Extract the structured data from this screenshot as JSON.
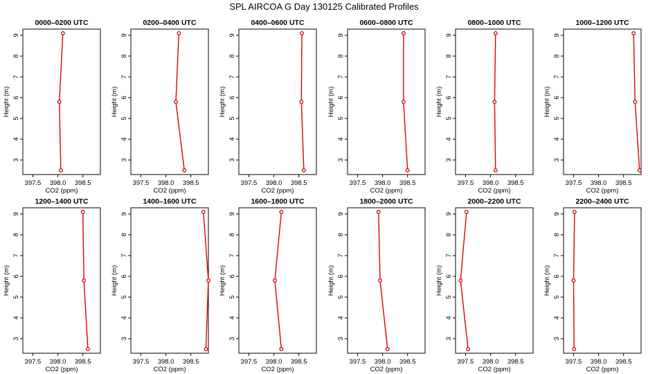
{
  "figure": {
    "title": "SPL AIRCOA G  Day 130125  Calibrated Profiles"
  },
  "colors": {
    "series": "#dd0000",
    "axes": "#000000"
  },
  "chart_data": [
    {
      "type": "line",
      "title": "0000–0200 UTC",
      "xlabel": "CO2 (ppm)",
      "ylabel": "Height (m)",
      "xlim": [
        397.3,
        398.85
      ],
      "ylim": [
        2.3,
        9.3
      ],
      "xticks": [
        "397.5",
        "398.0",
        "398.5"
      ],
      "yticks": [
        "3",
        "4",
        "5",
        "6",
        "7",
        "8",
        "9"
      ],
      "x": [
        398.06,
        398.03,
        398.1
      ],
      "y": [
        2.5,
        5.8,
        9.1
      ]
    },
    {
      "type": "line",
      "title": "0200–0400 UTC",
      "xlabel": "CO2 (ppm)",
      "ylabel": "Height (m)",
      "xlim": [
        397.3,
        398.85
      ],
      "ylim": [
        2.3,
        9.3
      ],
      "xticks": [
        "397.5",
        "398.0",
        "398.5"
      ],
      "yticks": [
        "3",
        "4",
        "5",
        "6",
        "7",
        "8",
        "9"
      ],
      "x": [
        398.37,
        398.2,
        398.26
      ],
      "y": [
        2.5,
        5.8,
        9.1
      ]
    },
    {
      "type": "line",
      "title": "0400–0600 UTC",
      "xlabel": "CO2 (ppm)",
      "ylabel": "Height (m)",
      "xlim": [
        397.3,
        398.85
      ],
      "ylim": [
        2.3,
        9.3
      ],
      "xticks": [
        "397.5",
        "398.0",
        "398.5"
      ],
      "yticks": [
        "3",
        "4",
        "5",
        "6",
        "7",
        "8",
        "9"
      ],
      "x": [
        398.6,
        398.55,
        398.56
      ],
      "y": [
        2.5,
        5.8,
        9.1
      ]
    },
    {
      "type": "line",
      "title": "0600–0800 UTC",
      "xlabel": "CO2 (ppm)",
      "ylabel": "Height (m)",
      "xlim": [
        397.3,
        398.85
      ],
      "ylim": [
        2.3,
        9.3
      ],
      "xticks": [
        "397.5",
        "398.0",
        "398.5"
      ],
      "yticks": [
        "3",
        "4",
        "5",
        "6",
        "7",
        "8",
        "9"
      ],
      "x": [
        398.5,
        398.42,
        398.42
      ],
      "y": [
        2.5,
        5.8,
        9.1
      ]
    },
    {
      "type": "line",
      "title": "0800–1000 UTC",
      "xlabel": "CO2 (ppm)",
      "ylabel": "Height (m)",
      "xlim": [
        397.3,
        398.85
      ],
      "ylim": [
        2.3,
        9.3
      ],
      "xticks": [
        "397.5",
        "398.0",
        "398.5"
      ],
      "yticks": [
        "3",
        "4",
        "5",
        "6",
        "7",
        "8",
        "9"
      ],
      "x": [
        398.1,
        398.08,
        398.1
      ],
      "y": [
        2.5,
        5.8,
        9.1
      ]
    },
    {
      "type": "line",
      "title": "1000–1200 UTC",
      "xlabel": "CO2 (ppm)",
      "ylabel": "Height (m)",
      "xlim": [
        397.3,
        398.85
      ],
      "ylim": [
        2.3,
        9.3
      ],
      "xticks": [
        "397.5",
        "398.0",
        "398.5"
      ],
      "yticks": [
        "3",
        "4",
        "5",
        "6",
        "7",
        "8",
        "9"
      ],
      "x": [
        398.82,
        398.73,
        398.7
      ],
      "y": [
        2.5,
        5.8,
        9.1
      ]
    },
    {
      "type": "line",
      "title": "1200–1400 UTC",
      "xlabel": "CO2 (ppm)",
      "ylabel": "Height (m)",
      "xlim": [
        397.3,
        398.85
      ],
      "ylim": [
        2.3,
        9.3
      ],
      "xticks": [
        "397.5",
        "398.0",
        "398.5"
      ],
      "yticks": [
        "3",
        "4",
        "5",
        "6",
        "7",
        "8",
        "9"
      ],
      "x": [
        398.6,
        398.52,
        398.5
      ],
      "y": [
        2.5,
        5.8,
        9.1
      ]
    },
    {
      "type": "line",
      "title": "1400–1600 UTC",
      "xlabel": "CO2 (ppm)",
      "ylabel": "Height (m)",
      "xlim": [
        397.3,
        398.85
      ],
      "ylim": [
        2.3,
        9.3
      ],
      "xticks": [
        "397.5",
        "398.0",
        "398.5"
      ],
      "yticks": [
        "3",
        "4",
        "5",
        "6",
        "7",
        "8",
        "9"
      ],
      "x": [
        398.8,
        398.85,
        398.75
      ],
      "y": [
        2.5,
        5.8,
        9.1
      ]
    },
    {
      "type": "line",
      "title": "1600–1800 UTC",
      "xlabel": "CO2 (ppm)",
      "ylabel": "Height (m)",
      "xlim": [
        397.3,
        398.85
      ],
      "ylim": [
        2.3,
        9.3
      ],
      "xticks": [
        "397.5",
        "398.0",
        "398.5"
      ],
      "yticks": [
        "3",
        "4",
        "5",
        "6",
        "7",
        "8",
        "9"
      ],
      "x": [
        398.15,
        398.02,
        398.15
      ],
      "y": [
        2.5,
        5.8,
        9.1
      ]
    },
    {
      "type": "line",
      "title": "1800–2000 UTC",
      "xlabel": "CO2 (ppm)",
      "ylabel": "Height (m)",
      "xlim": [
        397.3,
        398.85
      ],
      "ylim": [
        2.3,
        9.3
      ],
      "xticks": [
        "397.5",
        "398.0",
        "398.5"
      ],
      "yticks": [
        "3",
        "4",
        "5",
        "6",
        "7",
        "8",
        "9"
      ],
      "x": [
        398.1,
        397.95,
        397.92
      ],
      "y": [
        2.5,
        5.8,
        9.1
      ]
    },
    {
      "type": "line",
      "title": "2000–2200 UTC",
      "xlabel": "CO2 (ppm)",
      "ylabel": "Height (m)",
      "xlim": [
        397.3,
        398.85
      ],
      "ylim": [
        2.3,
        9.3
      ],
      "xticks": [
        "397.5",
        "398.0",
        "398.5"
      ],
      "yticks": [
        "3",
        "4",
        "5",
        "6",
        "7",
        "8",
        "9"
      ],
      "x": [
        397.55,
        397.4,
        397.52
      ],
      "y": [
        2.5,
        5.8,
        9.1
      ]
    },
    {
      "type": "line",
      "title": "2200–2400 UTC",
      "xlabel": "CO2 (ppm)",
      "ylabel": "Height (m)",
      "xlim": [
        397.3,
        398.85
      ],
      "ylim": [
        2.3,
        9.3
      ],
      "xticks": [
        "397.5",
        "398.0",
        "398.5"
      ],
      "yticks": [
        "3",
        "4",
        "5",
        "6",
        "7",
        "8",
        "9"
      ],
      "x": [
        397.51,
        397.5,
        397.52
      ],
      "y": [
        2.5,
        5.8,
        9.1
      ]
    }
  ]
}
